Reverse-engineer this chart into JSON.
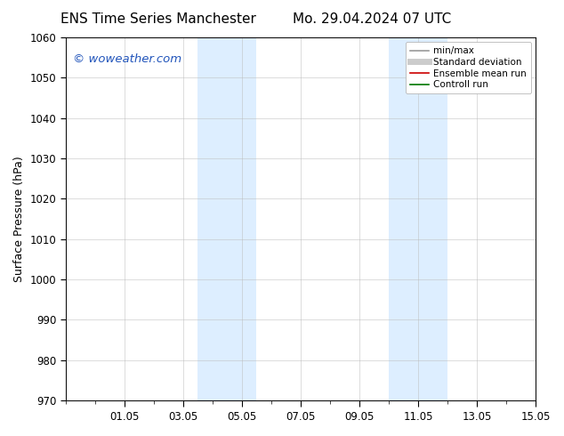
{
  "title_left": "ENS Time Series Manchester",
  "title_right": "Mo. 29.04.2024 07 UTC",
  "ylabel": "Surface Pressure (hPa)",
  "ylim": [
    970,
    1060
  ],
  "yticks": [
    970,
    980,
    990,
    1000,
    1010,
    1020,
    1030,
    1040,
    1050,
    1060
  ],
  "xlim": [
    0,
    16
  ],
  "xtick_labels": [
    "01.05",
    "03.05",
    "05.05",
    "07.05",
    "09.05",
    "11.05",
    "13.05",
    "15.05"
  ],
  "xtick_positions": [
    2,
    4,
    6,
    8,
    10,
    12,
    14,
    16
  ],
  "shaded_regions": [
    {
      "x_start": 4.5,
      "x_end": 6.5
    },
    {
      "x_start": 11.0,
      "x_end": 13.0
    }
  ],
  "shaded_color": "#ddeeff",
  "background_color": "#ffffff",
  "watermark_text": "© woweather.com",
  "watermark_color": "#2255bb",
  "legend_entries": [
    {
      "label": "min/max",
      "color": "#999999",
      "lw": 1.2,
      "linestyle": "-"
    },
    {
      "label": "Standard deviation",
      "color": "#cccccc",
      "lw": 5,
      "linestyle": "-"
    },
    {
      "label": "Ensemble mean run",
      "color": "#cc0000",
      "lw": 1.2,
      "linestyle": "-"
    },
    {
      "label": "Controll run",
      "color": "#007700",
      "lw": 1.2,
      "linestyle": "-"
    }
  ],
  "grid_color": "#bbbbbb",
  "grid_alpha": 0.7,
  "title_fontsize": 11,
  "axis_fontsize": 9,
  "tick_fontsize": 8.5,
  "watermark_fontsize": 9.5,
  "legend_fontsize": 7.5
}
